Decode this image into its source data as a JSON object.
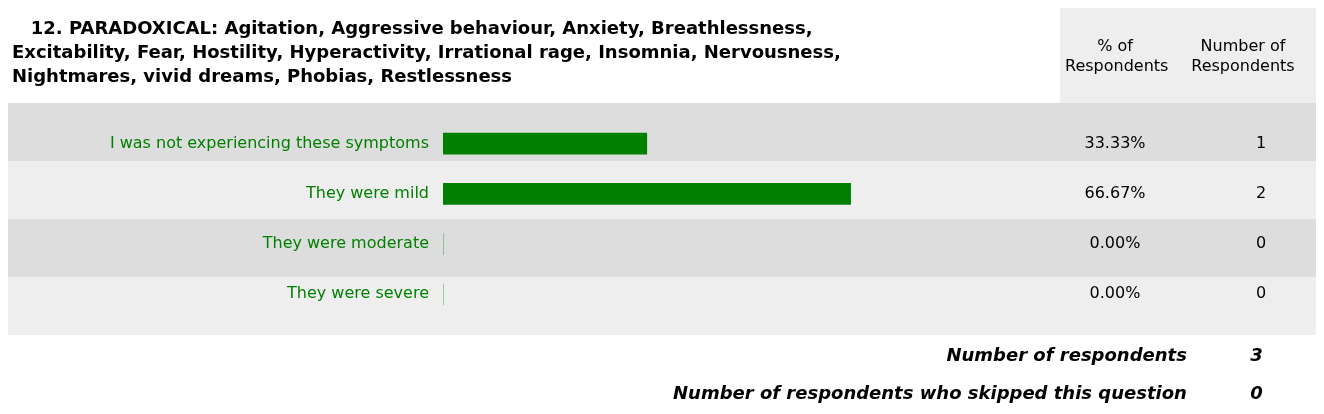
{
  "chart_data": {
    "type": "bar",
    "orientation": "horizontal",
    "title": "12. PARADOXICAL: Agitation, Aggressive behaviour, Anxiety, Breathlessness, Excitability, Fear, Hostility, Hyperactivity, Irrational rage, Insomnia, Nervousness, Nightmares, vivid dreams, Phobias, Restlessness",
    "categories": [
      "I was not experiencing these symptoms",
      "They were mild",
      "They were moderate",
      "They were severe"
    ],
    "values": [
      33.33,
      66.67,
      0,
      0
    ],
    "value_labels": [
      "33.33%",
      "66.67%",
      "0.00%",
      "0.00%"
    ],
    "color": "#008000",
    "legend": false,
    "annotations": [
      "% of Respondents",
      "Number of Respondents",
      "1",
      "2",
      "0",
      "0",
      "Number of respondents",
      "3",
      "Number of respondents who skipped this question",
      "0"
    ]
  }
}
